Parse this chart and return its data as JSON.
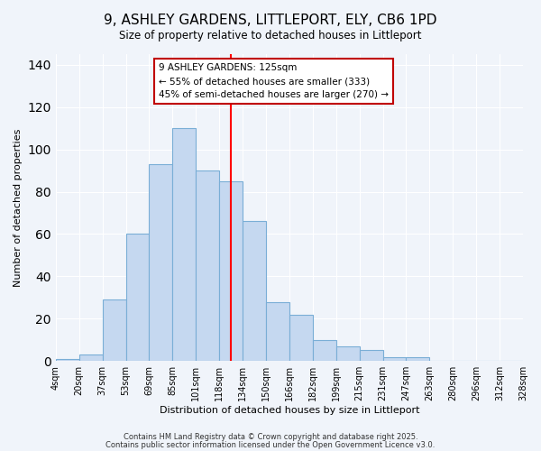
{
  "title": "9, ASHLEY GARDENS, LITTLEPORT, ELY, CB6 1PD",
  "subtitle": "Size of property relative to detached houses in Littleport",
  "xlabel": "Distribution of detached houses by size in Littleport",
  "ylabel": "Number of detached properties",
  "bin_labels": [
    "4sqm",
    "20sqm",
    "37sqm",
    "53sqm",
    "69sqm",
    "85sqm",
    "101sqm",
    "118sqm",
    "134sqm",
    "150sqm",
    "166sqm",
    "182sqm",
    "199sqm",
    "215sqm",
    "231sqm",
    "247sqm",
    "263sqm",
    "280sqm",
    "296sqm",
    "312sqm",
    "328sqm"
  ],
  "bar_heights": [
    1,
    3,
    29,
    60,
    93,
    110,
    90,
    85,
    66,
    28,
    22,
    10,
    7,
    5,
    2,
    2,
    0,
    0,
    0,
    0
  ],
  "bar_color": "#c5d8f0",
  "bar_edge_color": "#7aaed6",
  "vline_color": "red",
  "vline_pos": 7.5,
  "annotation_line1": "9 ASHLEY GARDENS: 125sqm",
  "annotation_line2": "← 55% of detached houses are smaller (333)",
  "annotation_line3": "45% of semi-detached houses are larger (270) →",
  "annotation_box_color": "#c00000",
  "ylim": [
    0,
    145
  ],
  "footnote1": "Contains HM Land Registry data © Crown copyright and database right 2025.",
  "footnote2": "Contains public sector information licensed under the Open Government Licence v3.0.",
  "background_color": "#f0f4fa",
  "grid_color": "white"
}
